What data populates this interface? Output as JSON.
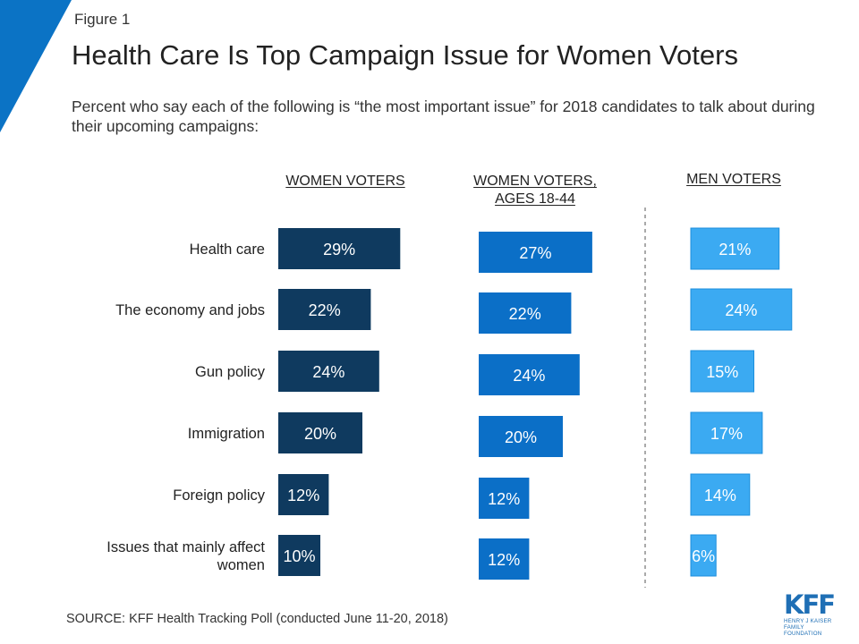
{
  "figure_label": "Figure 1",
  "title": "Health Care Is Top Campaign Issue for Women Voters",
  "subtitle": "Percent who say each of the following is “the most important issue” for 2018 candidates to talk about during their upcoming campaigns:",
  "source": "SOURCE: KFF Health Tracking Poll (conducted June 11-20, 2018)",
  "logo": {
    "mark": "KFF",
    "line1": "HENRY J KAISER",
    "line2": "FAMILY FOUNDATION"
  },
  "colors": {
    "corner": "#0b73c5",
    "women": "#0f3a5f",
    "women_18_44": "#0b6fc7",
    "men": "#3baaf2",
    "divider": "#555555"
  },
  "chart_data": {
    "type": "bar",
    "orientation": "horizontal",
    "categories": [
      "Health care",
      "The economy and jobs",
      "Gun policy",
      "Immigration",
      "Foreign policy",
      "Issues that mainly affect women"
    ],
    "series": [
      {
        "name": "WOMEN VOTERS",
        "values": [
          29,
          22,
          24,
          20,
          12,
          10
        ],
        "labels": [
          "29%",
          "22%",
          "24%",
          "20%",
          "12%",
          "10%"
        ]
      },
      {
        "name": "WOMEN VOTERS, AGES 18-44",
        "values": [
          27,
          22,
          24,
          20,
          12,
          12
        ],
        "labels": [
          "27%",
          "22%",
          "24%",
          "20%",
          "12%",
          "12%"
        ]
      },
      {
        "name": "MEN VOTERS",
        "values": [
          21,
          24,
          15,
          17,
          14,
          6
        ],
        "labels": [
          "21%",
          "24%",
          "15%",
          "17%",
          "14%",
          "6%"
        ]
      }
    ],
    "value_unit": "%",
    "grid": false,
    "legend": "column headers"
  }
}
